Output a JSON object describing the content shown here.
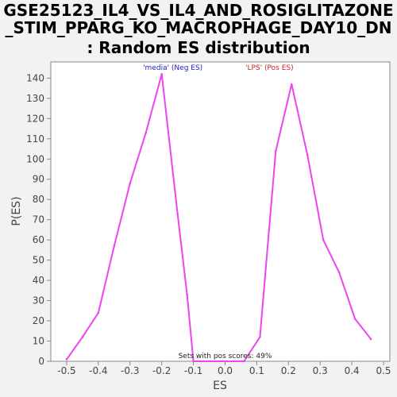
{
  "chart_data": {
    "type": "line",
    "title_lines": [
      "GSE25123_IL4_VS_IL4_AND_ROSIGLITAZONE",
      "_STIM_PPARG_KO_MACROPHAGE_DAY10_DN",
      ": Random ES distribution"
    ],
    "xlabel": "ES",
    "ylabel": "P(ES)",
    "xlim": [
      -0.55,
      0.52
    ],
    "ylim": [
      0,
      148
    ],
    "xticks": [
      -0.5,
      -0.4,
      -0.3,
      -0.2,
      -0.1,
      0.0,
      0.1,
      0.2,
      0.3,
      0.4,
      0.5
    ],
    "xtick_labels": [
      "-0.5",
      "-0.4",
      "-0.3",
      "-0.2",
      "-0.1",
      "0.0",
      "0.1",
      "0.2",
      "0.3",
      "0.4",
      "0.5"
    ],
    "yticks": [
      0,
      10,
      20,
      30,
      40,
      50,
      60,
      70,
      80,
      90,
      100,
      110,
      120,
      130,
      140
    ],
    "grid": false,
    "line_color": "#ee44ee",
    "series": [
      {
        "values": [
          [
            -0.5,
            1
          ],
          [
            -0.45,
            12
          ],
          [
            -0.4,
            24
          ],
          [
            -0.35,
            57
          ],
          [
            -0.3,
            88
          ],
          [
            -0.25,
            113
          ],
          [
            -0.2,
            142
          ],
          [
            -0.15,
            73
          ],
          [
            -0.12,
            33
          ],
          [
            -0.1,
            0
          ],
          [
            0.06,
            0
          ],
          [
            0.11,
            12
          ],
          [
            0.16,
            104
          ],
          [
            0.21,
            137
          ],
          [
            0.26,
            102
          ],
          [
            0.31,
            60
          ],
          [
            0.36,
            44
          ],
          [
            0.41,
            21
          ],
          [
            0.46,
            11
          ]
        ]
      }
    ],
    "annotations": [
      {
        "text": "'media' (Neg ES)",
        "x": -0.165,
        "y": 144,
        "color": "#2222bb"
      },
      {
        "text": "'LPS' (Pos ES)",
        "x": 0.14,
        "y": 144,
        "color": "#cc2222"
      },
      {
        "text": "Sets with pos scores: 49%",
        "x": 0.0,
        "y": 1.5,
        "color": "#222222"
      }
    ]
  }
}
